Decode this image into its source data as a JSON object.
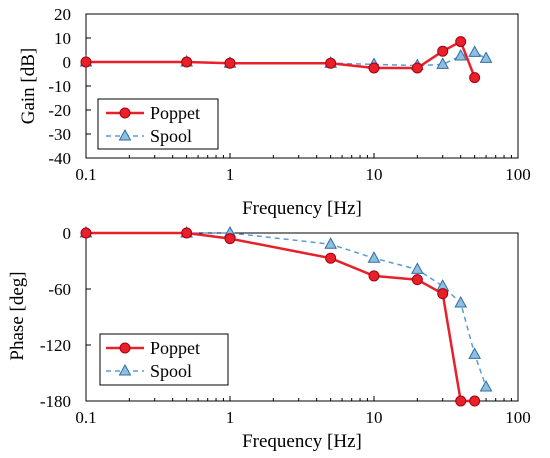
{
  "chart_data": [
    {
      "type": "line",
      "xscale": "log",
      "xlim": [
        0.1,
        100
      ],
      "ylim": [
        -40,
        20
      ],
      "xticks": [
        "0.1",
        "1",
        "10",
        "100"
      ],
      "yticks": [
        "20",
        "10",
        "0",
        "-10",
        "-20",
        "-30",
        "-40"
      ],
      "xlabel": "Frequency [Hz]",
      "ylabel": "Gain [dB]",
      "grid": false,
      "legend_position": "bottom-left",
      "series": [
        {
          "name": "Poppet",
          "color": "#e8202a",
          "marker": "circle",
          "line": "solid",
          "x": [
            0.1,
            0.5,
            1,
            5,
            10,
            20,
            30,
            40,
            50
          ],
          "y": [
            0,
            0,
            -0.5,
            -0.5,
            -2.5,
            -2.5,
            4.5,
            8.5,
            -6.5
          ]
        },
        {
          "name": "Spool",
          "color": "#5b9bd5",
          "marker": "triangle",
          "line": "dashed",
          "x": [
            0.1,
            0.5,
            1,
            5,
            10,
            20,
            30,
            40,
            50,
            60
          ],
          "y": [
            0,
            0,
            -0.5,
            -0.5,
            -1,
            -1.5,
            -1,
            2.5,
            4,
            1.5
          ]
        }
      ]
    },
    {
      "type": "line",
      "xscale": "log",
      "xlim": [
        0.1,
        100
      ],
      "ylim": [
        -180,
        0
      ],
      "xticks": [
        "0.1",
        "1",
        "10",
        "100"
      ],
      "yticks": [
        "0",
        "-60",
        "-120",
        "-180"
      ],
      "xlabel": "Frequency [Hz]",
      "ylabel": "Phase [deg]",
      "grid": false,
      "legend_position": "bottom-left",
      "series": [
        {
          "name": "Poppet",
          "color": "#e8202a",
          "marker": "circle",
          "line": "solid",
          "x": [
            0.1,
            0.5,
            1,
            5,
            10,
            20,
            30,
            40,
            50
          ],
          "y": [
            0,
            0,
            -6,
            -27,
            -46,
            -50,
            -65,
            -180,
            -180
          ]
        },
        {
          "name": "Spool",
          "color": "#5b9bd5",
          "marker": "triangle",
          "line": "dashed",
          "x": [
            0.1,
            0.5,
            1,
            5,
            10,
            20,
            30,
            40,
            50,
            60
          ],
          "y": [
            0,
            0,
            0,
            -12,
            -27,
            -39,
            -57,
            -75,
            -130,
            -165
          ]
        }
      ]
    }
  ]
}
